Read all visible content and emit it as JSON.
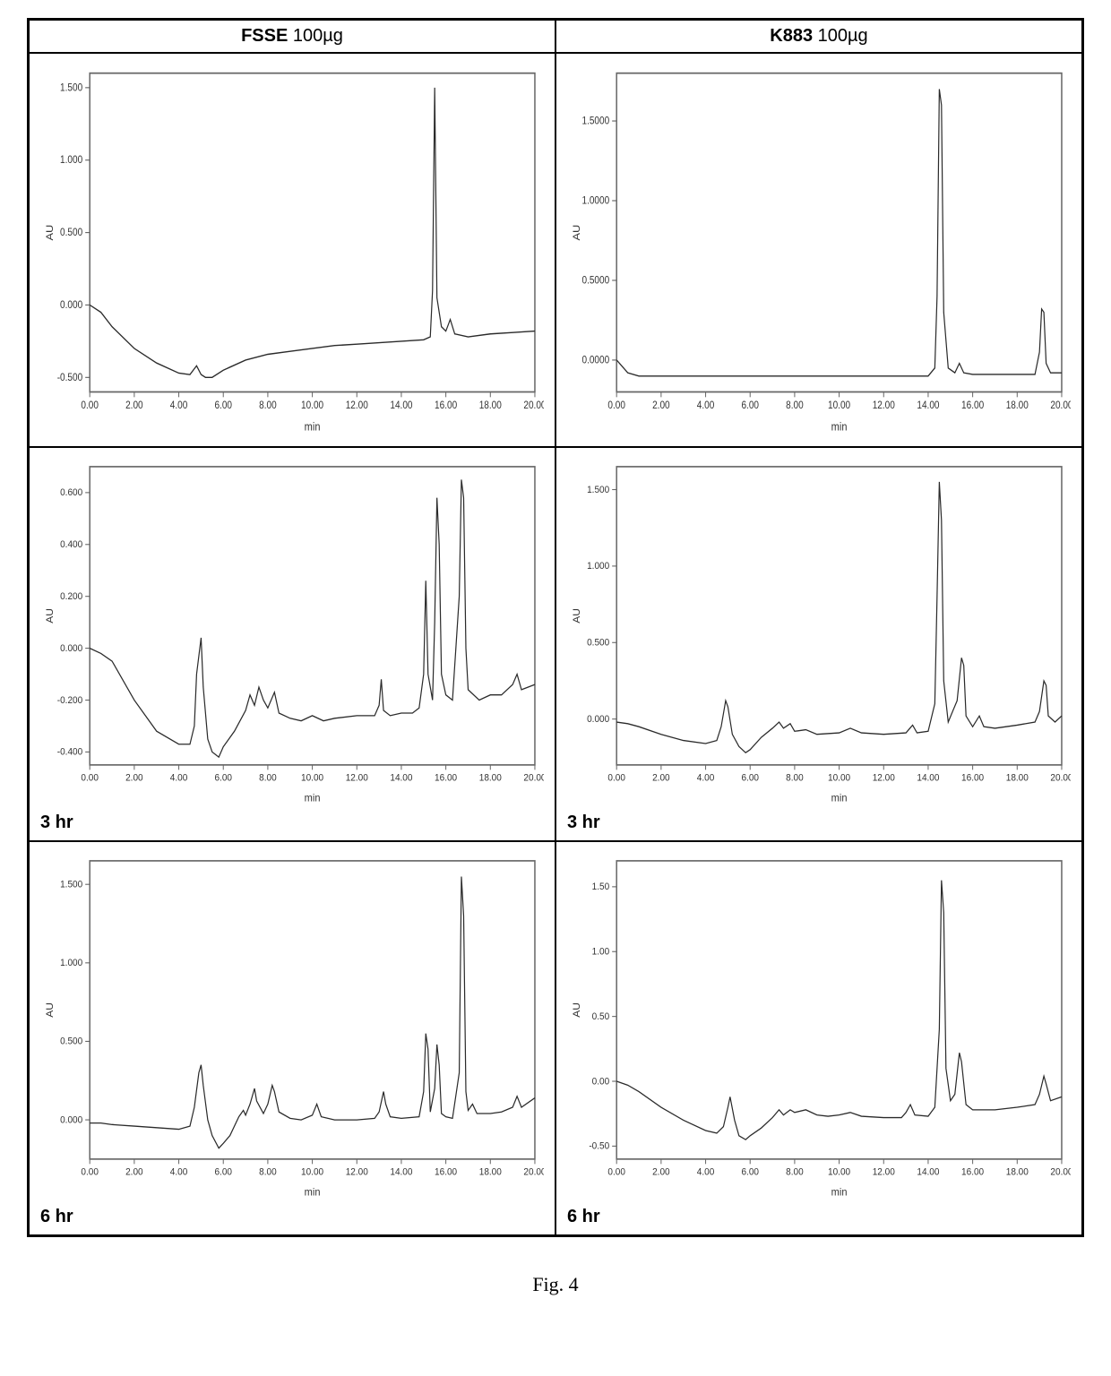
{
  "figure_caption": "Fig. 4",
  "headers": {
    "left": {
      "bold": "FSSE",
      "rest": " 100µg"
    },
    "right": {
      "bold": "K883",
      "rest": " 100µg"
    }
  },
  "time_labels": {
    "row2": "3 hr",
    "row3": "6 hr"
  },
  "chart_style": {
    "line_color": "#2a2a2a",
    "background_color": "#ffffff",
    "border_color": "#666666",
    "axis_font_size": 10,
    "label_font_size": 11
  },
  "charts": {
    "r1c1": {
      "xlabel": "min",
      "ylabel": "AU",
      "xlim": [
        0,
        20
      ],
      "xticks": [
        0,
        2,
        4,
        6,
        8,
        10,
        12,
        14,
        16,
        18,
        20
      ],
      "xtick_labels": [
        "0.00",
        "2.00",
        "4.00",
        "6.00",
        "8.00",
        "10.00",
        "12.00",
        "14.00",
        "16.00",
        "18.00",
        "20.00"
      ],
      "ylim": [
        -0.6,
        1.6
      ],
      "yticks": [
        -0.5,
        0.0,
        0.5,
        1.0,
        1.5
      ],
      "ytick_labels": [
        "-0.500",
        "0.000",
        "0.500",
        "1.000",
        "1.500"
      ],
      "data": [
        [
          0,
          0.0
        ],
        [
          0.5,
          -0.05
        ],
        [
          1,
          -0.15
        ],
        [
          2,
          -0.3
        ],
        [
          3,
          -0.4
        ],
        [
          4,
          -0.47
        ],
        [
          4.5,
          -0.48
        ],
        [
          4.8,
          -0.42
        ],
        [
          5,
          -0.48
        ],
        [
          5.2,
          -0.5
        ],
        [
          5.5,
          -0.5
        ],
        [
          6,
          -0.45
        ],
        [
          7,
          -0.38
        ],
        [
          8,
          -0.34
        ],
        [
          9,
          -0.32
        ],
        [
          10,
          -0.3
        ],
        [
          11,
          -0.28
        ],
        [
          12,
          -0.27
        ],
        [
          13,
          -0.26
        ],
        [
          14,
          -0.25
        ],
        [
          15,
          -0.24
        ],
        [
          15.3,
          -0.22
        ],
        [
          15.4,
          0.1
        ],
        [
          15.5,
          1.5
        ],
        [
          15.6,
          0.05
        ],
        [
          15.8,
          -0.15
        ],
        [
          16,
          -0.18
        ],
        [
          16.2,
          -0.1
        ],
        [
          16.4,
          -0.2
        ],
        [
          17,
          -0.22
        ],
        [
          18,
          -0.2
        ],
        [
          19,
          -0.19
        ],
        [
          20,
          -0.18
        ]
      ]
    },
    "r1c2": {
      "xlabel": "min",
      "ylabel": "AU",
      "xlim": [
        0,
        20
      ],
      "xticks": [
        0,
        2,
        4,
        6,
        8,
        10,
        12,
        14,
        16,
        18,
        20
      ],
      "xtick_labels": [
        "0.00",
        "2.00",
        "4.00",
        "6.00",
        "8.00",
        "10.00",
        "12.00",
        "14.00",
        "16.00",
        "18.00",
        "20.00"
      ],
      "ylim": [
        -0.2,
        1.8
      ],
      "yticks": [
        0.0,
        0.5,
        1.0,
        1.5
      ],
      "ytick_labels": [
        "0.0000",
        "0.5000",
        "1.0000",
        "1.5000"
      ],
      "data": [
        [
          0,
          0.0
        ],
        [
          0.5,
          -0.08
        ],
        [
          1,
          -0.1
        ],
        [
          2,
          -0.1
        ],
        [
          4,
          -0.1
        ],
        [
          6,
          -0.1
        ],
        [
          8,
          -0.1
        ],
        [
          10,
          -0.1
        ],
        [
          12,
          -0.1
        ],
        [
          13,
          -0.1
        ],
        [
          14,
          -0.1
        ],
        [
          14.3,
          -0.05
        ],
        [
          14.4,
          0.4
        ],
        [
          14.5,
          1.7
        ],
        [
          14.6,
          1.6
        ],
        [
          14.7,
          0.3
        ],
        [
          14.9,
          -0.05
        ],
        [
          15.2,
          -0.08
        ],
        [
          15.4,
          -0.02
        ],
        [
          15.6,
          -0.08
        ],
        [
          16,
          -0.09
        ],
        [
          17,
          -0.09
        ],
        [
          18,
          -0.09
        ],
        [
          18.8,
          -0.09
        ],
        [
          19,
          0.05
        ],
        [
          19.1,
          0.32
        ],
        [
          19.2,
          0.3
        ],
        [
          19.3,
          -0.02
        ],
        [
          19.5,
          -0.08
        ],
        [
          20,
          -0.08
        ]
      ]
    },
    "r2c1": {
      "xlabel": "min",
      "ylabel": "AU",
      "xlim": [
        0,
        20
      ],
      "xticks": [
        0,
        2,
        4,
        6,
        8,
        10,
        12,
        14,
        16,
        18,
        20
      ],
      "xtick_labels": [
        "0.00",
        "2.00",
        "4.00",
        "6.00",
        "8.00",
        "10.00",
        "12.00",
        "14.00",
        "16.00",
        "18.00",
        "20.00"
      ],
      "ylim": [
        -0.45,
        0.7
      ],
      "yticks": [
        -0.4,
        -0.2,
        0.0,
        0.2,
        0.4,
        0.6
      ],
      "ytick_labels": [
        "-0.400",
        "-0.200",
        "0.000",
        "0.200",
        "0.400",
        "0.600"
      ],
      "data": [
        [
          0,
          0.0
        ],
        [
          0.5,
          -0.02
        ],
        [
          1,
          -0.05
        ],
        [
          2,
          -0.2
        ],
        [
          3,
          -0.32
        ],
        [
          4,
          -0.37
        ],
        [
          4.5,
          -0.37
        ],
        [
          4.7,
          -0.3
        ],
        [
          4.8,
          -0.1
        ],
        [
          5,
          0.04
        ],
        [
          5.1,
          -0.15
        ],
        [
          5.3,
          -0.35
        ],
        [
          5.5,
          -0.4
        ],
        [
          5.8,
          -0.42
        ],
        [
          6,
          -0.38
        ],
        [
          6.5,
          -0.32
        ],
        [
          7,
          -0.24
        ],
        [
          7.2,
          -0.18
        ],
        [
          7.4,
          -0.22
        ],
        [
          7.6,
          -0.15
        ],
        [
          7.8,
          -0.2
        ],
        [
          8,
          -0.23
        ],
        [
          8.3,
          -0.17
        ],
        [
          8.5,
          -0.25
        ],
        [
          9,
          -0.27
        ],
        [
          9.5,
          -0.28
        ],
        [
          10,
          -0.26
        ],
        [
          10.5,
          -0.28
        ],
        [
          11,
          -0.27
        ],
        [
          12,
          -0.26
        ],
        [
          12.8,
          -0.26
        ],
        [
          13,
          -0.22
        ],
        [
          13.1,
          -0.12
        ],
        [
          13.2,
          -0.24
        ],
        [
          13.5,
          -0.26
        ],
        [
          14,
          -0.25
        ],
        [
          14.5,
          -0.25
        ],
        [
          14.8,
          -0.23
        ],
        [
          15,
          -0.1
        ],
        [
          15.1,
          0.26
        ],
        [
          15.2,
          -0.1
        ],
        [
          15.4,
          -0.2
        ],
        [
          15.5,
          0.1
        ],
        [
          15.6,
          0.58
        ],
        [
          15.7,
          0.4
        ],
        [
          15.8,
          -0.1
        ],
        [
          16,
          -0.18
        ],
        [
          16.3,
          -0.2
        ],
        [
          16.6,
          0.2
        ],
        [
          16.7,
          0.65
        ],
        [
          16.8,
          0.58
        ],
        [
          16.9,
          0.0
        ],
        [
          17,
          -0.16
        ],
        [
          17.5,
          -0.2
        ],
        [
          18,
          -0.18
        ],
        [
          18.5,
          -0.18
        ],
        [
          19,
          -0.14
        ],
        [
          19.2,
          -0.1
        ],
        [
          19.4,
          -0.16
        ],
        [
          20,
          -0.14
        ]
      ]
    },
    "r2c2": {
      "xlabel": "min",
      "ylabel": "AU",
      "xlim": [
        0,
        20
      ],
      "xticks": [
        0,
        2,
        4,
        6,
        8,
        10,
        12,
        14,
        16,
        18,
        20
      ],
      "xtick_labels": [
        "0.00",
        "2.00",
        "4.00",
        "6.00",
        "8.00",
        "10.00",
        "12.00",
        "14.00",
        "16.00",
        "18.00",
        "20.00"
      ],
      "ylim": [
        -0.3,
        1.65
      ],
      "yticks": [
        0.0,
        0.5,
        1.0,
        1.5
      ],
      "ytick_labels": [
        "0.000",
        "0.500",
        "1.000",
        "1.500"
      ],
      "data": [
        [
          0,
          -0.02
        ],
        [
          0.5,
          -0.03
        ],
        [
          1,
          -0.05
        ],
        [
          2,
          -0.1
        ],
        [
          3,
          -0.14
        ],
        [
          4,
          -0.16
        ],
        [
          4.5,
          -0.14
        ],
        [
          4.7,
          -0.05
        ],
        [
          4.9,
          0.12
        ],
        [
          5,
          0.08
        ],
        [
          5.2,
          -0.1
        ],
        [
          5.5,
          -0.18
        ],
        [
          5.8,
          -0.22
        ],
        [
          6,
          -0.2
        ],
        [
          6.5,
          -0.12
        ],
        [
          7,
          -0.06
        ],
        [
          7.3,
          -0.02
        ],
        [
          7.5,
          -0.06
        ],
        [
          7.8,
          -0.03
        ],
        [
          8,
          -0.08
        ],
        [
          8.5,
          -0.07
        ],
        [
          9,
          -0.1
        ],
        [
          10,
          -0.09
        ],
        [
          10.5,
          -0.06
        ],
        [
          11,
          -0.09
        ],
        [
          12,
          -0.1
        ],
        [
          13,
          -0.09
        ],
        [
          13.3,
          -0.04
        ],
        [
          13.5,
          -0.09
        ],
        [
          14,
          -0.08
        ],
        [
          14.3,
          0.1
        ],
        [
          14.4,
          0.8
        ],
        [
          14.5,
          1.55
        ],
        [
          14.6,
          1.3
        ],
        [
          14.7,
          0.25
        ],
        [
          14.9,
          -0.02
        ],
        [
          15.1,
          0.05
        ],
        [
          15.3,
          0.12
        ],
        [
          15.5,
          0.4
        ],
        [
          15.6,
          0.35
        ],
        [
          15.7,
          0.02
        ],
        [
          16,
          -0.05
        ],
        [
          16.3,
          0.02
        ],
        [
          16.5,
          -0.05
        ],
        [
          17,
          -0.06
        ],
        [
          18,
          -0.04
        ],
        [
          18.8,
          -0.02
        ],
        [
          19,
          0.05
        ],
        [
          19.2,
          0.25
        ],
        [
          19.3,
          0.22
        ],
        [
          19.4,
          0.02
        ],
        [
          19.7,
          -0.02
        ],
        [
          20,
          0.02
        ]
      ]
    },
    "r3c1": {
      "xlabel": "min",
      "ylabel": "AU",
      "xlim": [
        0,
        20
      ],
      "xticks": [
        0,
        2,
        4,
        6,
        8,
        10,
        12,
        14,
        16,
        18,
        20
      ],
      "xtick_labels": [
        "0.00",
        "2.00",
        "4.00",
        "6.00",
        "8.00",
        "10.00",
        "12.00",
        "14.00",
        "16.00",
        "18.00",
        "20.00"
      ],
      "ylim": [
        -0.25,
        1.65
      ],
      "yticks": [
        0.0,
        0.5,
        1.0,
        1.5
      ],
      "ytick_labels": [
        "0.000",
        "0.500",
        "1.000",
        "1.500"
      ],
      "data": [
        [
          0,
          -0.02
        ],
        [
          0.5,
          -0.02
        ],
        [
          1,
          -0.03
        ],
        [
          2,
          -0.04
        ],
        [
          3,
          -0.05
        ],
        [
          4,
          -0.06
        ],
        [
          4.5,
          -0.04
        ],
        [
          4.7,
          0.08
        ],
        [
          4.9,
          0.3
        ],
        [
          5,
          0.35
        ],
        [
          5.1,
          0.22
        ],
        [
          5.3,
          0.0
        ],
        [
          5.5,
          -0.1
        ],
        [
          5.8,
          -0.18
        ],
        [
          6,
          -0.15
        ],
        [
          6.3,
          -0.1
        ],
        [
          6.7,
          0.02
        ],
        [
          6.9,
          0.06
        ],
        [
          7,
          0.03
        ],
        [
          7.2,
          0.1
        ],
        [
          7.4,
          0.2
        ],
        [
          7.5,
          0.12
        ],
        [
          7.8,
          0.04
        ],
        [
          8,
          0.1
        ],
        [
          8.2,
          0.22
        ],
        [
          8.3,
          0.18
        ],
        [
          8.5,
          0.05
        ],
        [
          9,
          0.01
        ],
        [
          9.5,
          0.0
        ],
        [
          10,
          0.03
        ],
        [
          10.2,
          0.1
        ],
        [
          10.4,
          0.02
        ],
        [
          11,
          0.0
        ],
        [
          12,
          0.0
        ],
        [
          12.8,
          0.01
        ],
        [
          13,
          0.05
        ],
        [
          13.2,
          0.18
        ],
        [
          13.3,
          0.1
        ],
        [
          13.5,
          0.02
        ],
        [
          14,
          0.01
        ],
        [
          14.8,
          0.02
        ],
        [
          15,
          0.18
        ],
        [
          15.1,
          0.55
        ],
        [
          15.2,
          0.45
        ],
        [
          15.3,
          0.05
        ],
        [
          15.5,
          0.2
        ],
        [
          15.6,
          0.48
        ],
        [
          15.7,
          0.35
        ],
        [
          15.8,
          0.04
        ],
        [
          16,
          0.02
        ],
        [
          16.3,
          0.01
        ],
        [
          16.6,
          0.3
        ],
        [
          16.7,
          1.55
        ],
        [
          16.8,
          1.3
        ],
        [
          16.9,
          0.18
        ],
        [
          17.0,
          0.06
        ],
        [
          17.2,
          0.1
        ],
        [
          17.4,
          0.04
        ],
        [
          18,
          0.04
        ],
        [
          18.5,
          0.05
        ],
        [
          19,
          0.08
        ],
        [
          19.2,
          0.15
        ],
        [
          19.4,
          0.08
        ],
        [
          20,
          0.14
        ]
      ]
    },
    "r3c2": {
      "xlabel": "min",
      "ylabel": "AU",
      "xlim": [
        0,
        20
      ],
      "xticks": [
        0,
        2,
        4,
        6,
        8,
        10,
        12,
        14,
        16,
        18,
        20
      ],
      "xtick_labels": [
        "0.00",
        "2.00",
        "4.00",
        "6.00",
        "8.00",
        "10.00",
        "12.00",
        "14.00",
        "16.00",
        "18.00",
        "20.00"
      ],
      "ylim": [
        -0.6,
        1.7
      ],
      "yticks": [
        -0.5,
        0.0,
        0.5,
        1.0,
        1.5
      ],
      "ytick_labels": [
        "-0.50",
        "0.00",
        "0.50",
        "1.00",
        "1.50"
      ],
      "data": [
        [
          0,
          0.0
        ],
        [
          0.5,
          -0.03
        ],
        [
          1,
          -0.08
        ],
        [
          2,
          -0.2
        ],
        [
          3,
          -0.3
        ],
        [
          4,
          -0.38
        ],
        [
          4.5,
          -0.4
        ],
        [
          4.8,
          -0.35
        ],
        [
          5,
          -0.2
        ],
        [
          5.1,
          -0.12
        ],
        [
          5.3,
          -0.3
        ],
        [
          5.5,
          -0.42
        ],
        [
          5.8,
          -0.45
        ],
        [
          6,
          -0.42
        ],
        [
          6.5,
          -0.36
        ],
        [
          7,
          -0.28
        ],
        [
          7.3,
          -0.22
        ],
        [
          7.5,
          -0.26
        ],
        [
          7.8,
          -0.22
        ],
        [
          8,
          -0.24
        ],
        [
          8.5,
          -0.22
        ],
        [
          9,
          -0.26
        ],
        [
          9.5,
          -0.27
        ],
        [
          10,
          -0.26
        ],
        [
          10.5,
          -0.24
        ],
        [
          11,
          -0.27
        ],
        [
          12,
          -0.28
        ],
        [
          12.8,
          -0.28
        ],
        [
          13,
          -0.24
        ],
        [
          13.2,
          -0.18
        ],
        [
          13.4,
          -0.26
        ],
        [
          14,
          -0.27
        ],
        [
          14.3,
          -0.2
        ],
        [
          14.5,
          0.4
        ],
        [
          14.6,
          1.55
        ],
        [
          14.7,
          1.3
        ],
        [
          14.8,
          0.1
        ],
        [
          15,
          -0.15
        ],
        [
          15.2,
          -0.1
        ],
        [
          15.4,
          0.22
        ],
        [
          15.5,
          0.15
        ],
        [
          15.7,
          -0.18
        ],
        [
          16,
          -0.22
        ],
        [
          16.5,
          -0.22
        ],
        [
          17,
          -0.22
        ],
        [
          18,
          -0.2
        ],
        [
          18.8,
          -0.18
        ],
        [
          19,
          -0.1
        ],
        [
          19.2,
          0.04
        ],
        [
          19.3,
          -0.02
        ],
        [
          19.5,
          -0.15
        ],
        [
          20,
          -0.12
        ]
      ]
    }
  }
}
